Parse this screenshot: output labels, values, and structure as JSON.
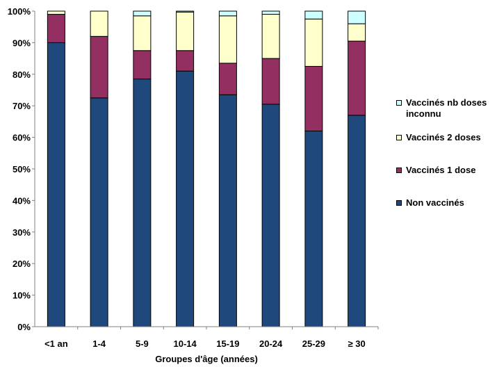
{
  "chart_data": {
    "type": "bar",
    "stacked": true,
    "categories": [
      "<1 an",
      "1-4",
      "5-9",
      "10-14",
      "15-19",
      "20-24",
      "25-29",
      "≥ 30"
    ],
    "series": [
      {
        "name": "Non vaccinés",
        "color": "#1F497D",
        "values": [
          90,
          72.5,
          78.5,
          81,
          73.5,
          70.5,
          62,
          67
        ]
      },
      {
        "name": "Vaccinés 1 dose",
        "color": "#943061",
        "values": [
          9,
          19.5,
          9,
          6.5,
          10,
          14.5,
          20.5,
          23.5
        ]
      },
      {
        "name": "Vaccinés 2 doses",
        "color": "#FFFFCC",
        "values": [
          1,
          8,
          11,
          12.2,
          15,
          14,
          15,
          5.5
        ]
      },
      {
        "name": "Vaccinés nb doses inconnu",
        "color": "#CCFFFF",
        "values": [
          0,
          0,
          1.5,
          0.3,
          1.5,
          1,
          2.5,
          4
        ]
      }
    ],
    "xlabel": "Groupes d'âge (années)",
    "ylabel": "",
    "ylim": [
      0,
      100
    ],
    "yticks": [
      "0%",
      "10%",
      "20%",
      "30%",
      "40%",
      "50%",
      "60%",
      "70%",
      "80%",
      "90%",
      "100%"
    ],
    "grid": false,
    "legend_position": "right"
  },
  "legend": {
    "items": [
      {
        "label_line1": "Vaccinés nb doses",
        "label_line2": "inconnu",
        "color": "#CCFFFF"
      },
      {
        "label_line1": "Vaccinés 2 doses",
        "label_line2": "",
        "color": "#FFFFCC"
      },
      {
        "label_line1": "Vaccinés 1 dose",
        "label_line2": "",
        "color": "#943061"
      },
      {
        "label_line1": "Non vaccinés",
        "label_line2": "",
        "color": "#1F497D"
      }
    ]
  }
}
